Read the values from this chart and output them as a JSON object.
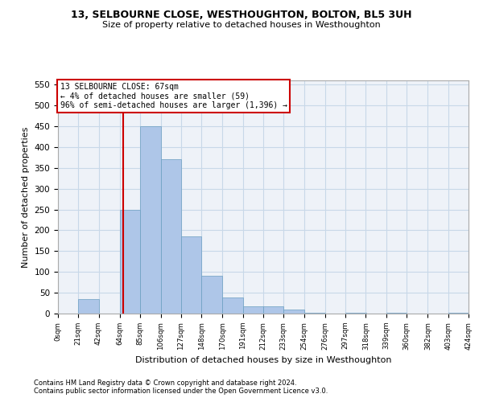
{
  "title": "13, SELBOURNE CLOSE, WESTHOUGHTON, BOLTON, BL5 3UH",
  "subtitle": "Size of property relative to detached houses in Westhoughton",
  "xlabel": "Distribution of detached houses by size in Westhoughton",
  "ylabel": "Number of detached properties",
  "footnote1": "Contains HM Land Registry data © Crown copyright and database right 2024.",
  "footnote2": "Contains public sector information licensed under the Open Government Licence v3.0.",
  "annotation_line1": "13 SELBOURNE CLOSE: 67sqm",
  "annotation_line2": "← 4% of detached houses are smaller (59)",
  "annotation_line3": "96% of semi-detached houses are larger (1,396) →",
  "subject_value": 67,
  "bar_left_edges": [
    0,
    21,
    42,
    64,
    85,
    106,
    127,
    148,
    170,
    191,
    212,
    233,
    254,
    276,
    297,
    318,
    339,
    360,
    382,
    403
  ],
  "bar_widths": [
    21,
    21,
    22,
    21,
    21,
    21,
    21,
    22,
    21,
    21,
    21,
    21,
    22,
    21,
    21,
    21,
    21,
    22,
    21,
    21
  ],
  "bar_heights": [
    0,
    35,
    0,
    250,
    450,
    370,
    185,
    90,
    38,
    18,
    18,
    10,
    2,
    0,
    2,
    0,
    2,
    0,
    0,
    2
  ],
  "bar_color": "#aec6e8",
  "bar_edge_color": "#6a9ec0",
  "subject_line_color": "#cc0000",
  "annotation_box_color": "#cc0000",
  "grid_color": "#c8d8e8",
  "background_color": "#eef2f8",
  "ylim": [
    0,
    560
  ],
  "yticks": [
    0,
    50,
    100,
    150,
    200,
    250,
    300,
    350,
    400,
    450,
    500,
    550
  ],
  "tick_labels": [
    "0sqm",
    "21sqm",
    "42sqm",
    "64sqm",
    "85sqm",
    "106sqm",
    "127sqm",
    "148sqm",
    "170sqm",
    "191sqm",
    "212sqm",
    "233sqm",
    "254sqm",
    "276sqm",
    "297sqm",
    "318sqm",
    "339sqm",
    "360sqm",
    "382sqm",
    "403sqm",
    "424sqm"
  ]
}
